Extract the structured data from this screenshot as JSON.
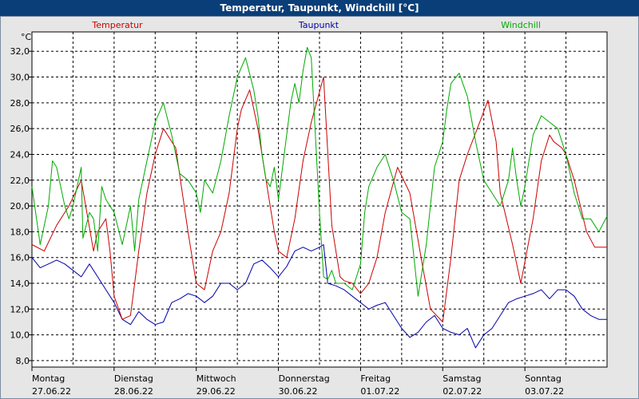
{
  "window": {
    "title": "Temperatur, Taupunkt, Windchill [°C]"
  },
  "colors": {
    "temperatur": "#cc0000",
    "taupunkt": "#0000aa",
    "windchill": "#00aa00",
    "plot_bg": "#ffffff",
    "grid": "#000000"
  },
  "chart_data": {
    "type": "line",
    "title": "Temperatur, Taupunkt, Windchill [°C]",
    "ylabel": "°C",
    "ylim": [
      7.5,
      33.5
    ],
    "xlim": [
      0,
      7
    ],
    "y_ticks": [
      "8,0",
      "10,0",
      "12,0",
      "14,0",
      "16,0",
      "18,0",
      "20,0",
      "22,0",
      "24,0",
      "26,0",
      "28,0",
      "30,0",
      "32,0"
    ],
    "y_tick_values": [
      8,
      10,
      12,
      14,
      16,
      18,
      20,
      22,
      24,
      26,
      28,
      30,
      32
    ],
    "x_ticks": [
      {
        "day": "Montag",
        "date": "27.06.22"
      },
      {
        "day": "Dienstag",
        "date": "28.06.22"
      },
      {
        "day": "Mittwoch",
        "date": "29.06.22"
      },
      {
        "day": "Donnerstag",
        "date": "30.06.22"
      },
      {
        "day": "Freitag",
        "date": "01.07.22"
      },
      {
        "day": "Samstag",
        "date": "02.07.22"
      },
      {
        "day": "Sonntag",
        "date": "03.07.22"
      }
    ],
    "x_tick_values": [
      0,
      1,
      2,
      3,
      4,
      5,
      6
    ],
    "grid": true,
    "series": [
      {
        "name": "Temperatur",
        "color": "#cc0000",
        "x": [
          0,
          0.15,
          0.3,
          0.45,
          0.6,
          0.75,
          0.8,
          0.9,
          0.95,
          1.0,
          1.1,
          1.2,
          1.25,
          1.3,
          1.4,
          1.5,
          1.6,
          1.75,
          1.9,
          2.0,
          2.1,
          2.2,
          2.3,
          2.4,
          2.5,
          2.55,
          2.65,
          2.75,
          2.85,
          2.95,
          3.0,
          3.1,
          3.2,
          3.3,
          3.4,
          3.55,
          3.65,
          3.75,
          3.8,
          3.9,
          4.0,
          4.1,
          4.2,
          4.3,
          4.45,
          4.6,
          4.75,
          4.85,
          5.0,
          5.1,
          5.2,
          5.3,
          5.45,
          5.55,
          5.65,
          5.7,
          5.85,
          5.95,
          6.1,
          6.2,
          6.3,
          6.35,
          6.45,
          6.5,
          6.6,
          6.75,
          6.85,
          7.0
        ],
        "values": [
          17.0,
          16.5,
          18.5,
          20.0,
          22.0,
          16.5,
          18.0,
          19.0,
          16.5,
          13.0,
          11.2,
          11.5,
          14.0,
          16.5,
          21.0,
          24.0,
          26.0,
          24.5,
          18.0,
          14.0,
          13.5,
          16.5,
          18.0,
          21.0,
          26.0,
          27.5,
          29.0,
          26.0,
          22.0,
          18.0,
          16.5,
          16.0,
          19.0,
          23.5,
          26.5,
          30.0,
          18.5,
          14.5,
          14.2,
          14.0,
          13.2,
          14.0,
          16.0,
          19.5,
          23.0,
          21.0,
          15.5,
          12.0,
          11.0,
          16.0,
          22.0,
          24.0,
          26.5,
          28.2,
          25.0,
          21.0,
          17.0,
          14.0,
          19.0,
          23.5,
          25.5,
          25.0,
          24.5,
          24.0,
          22.0,
          18.0,
          16.8,
          16.8
        ]
      },
      {
        "name": "Taupunkt",
        "color": "#0000aa",
        "x": [
          0,
          0.1,
          0.2,
          0.3,
          0.4,
          0.5,
          0.6,
          0.7,
          0.8,
          0.9,
          1.0,
          1.1,
          1.2,
          1.25,
          1.3,
          1.4,
          1.5,
          1.6,
          1.7,
          1.8,
          1.9,
          2.0,
          2.1,
          2.2,
          2.3,
          2.4,
          2.5,
          2.6,
          2.7,
          2.8,
          2.9,
          3.0,
          3.1,
          3.2,
          3.3,
          3.4,
          3.5,
          3.55,
          3.6,
          3.7,
          3.8,
          3.9,
          4.0,
          4.1,
          4.2,
          4.3,
          4.4,
          4.5,
          4.6,
          4.7,
          4.8,
          4.9,
          5.0,
          5.1,
          5.2,
          5.3,
          5.4,
          5.5,
          5.6,
          5.7,
          5.8,
          5.9,
          6.0,
          6.1,
          6.2,
          6.3,
          6.4,
          6.5,
          6.6,
          6.7,
          6.8,
          6.9,
          7.0
        ],
        "values": [
          16.0,
          15.2,
          15.5,
          15.8,
          15.5,
          15.0,
          14.5,
          15.5,
          14.5,
          13.5,
          12.5,
          11.2,
          10.8,
          11.3,
          11.8,
          11.2,
          10.8,
          11.0,
          12.5,
          12.8,
          13.2,
          13.0,
          12.5,
          13.0,
          14.0,
          14.0,
          13.5,
          14.0,
          15.5,
          15.8,
          15.2,
          14.5,
          15.3,
          16.5,
          16.8,
          16.5,
          16.8,
          17.0,
          14.0,
          13.8,
          13.5,
          13.0,
          12.5,
          12.0,
          12.3,
          12.5,
          11.5,
          10.5,
          9.8,
          10.2,
          11.0,
          11.5,
          10.5,
          10.2,
          10.0,
          10.5,
          9.0,
          10.0,
          10.5,
          11.5,
          12.5,
          12.8,
          13.0,
          13.2,
          13.5,
          12.8,
          13.5,
          13.5,
          13.0,
          12.0,
          11.5,
          11.2,
          11.2
        ]
      },
      {
        "name": "Windchill",
        "color": "#00aa00",
        "x": [
          0,
          0.1,
          0.2,
          0.25,
          0.3,
          0.4,
          0.45,
          0.5,
          0.6,
          0.62,
          0.7,
          0.75,
          0.8,
          0.85,
          0.9,
          0.95,
          1.0,
          1.1,
          1.2,
          1.25,
          1.3,
          1.4,
          1.5,
          1.6,
          1.7,
          1.75,
          1.8,
          1.9,
          2.0,
          2.05,
          2.1,
          2.2,
          2.3,
          2.4,
          2.5,
          2.6,
          2.7,
          2.75,
          2.8,
          2.85,
          2.9,
          2.95,
          3.0,
          3.1,
          3.15,
          3.2,
          3.25,
          3.3,
          3.35,
          3.4,
          3.5,
          3.55,
          3.6,
          3.65,
          3.7,
          3.8,
          3.9,
          4.0,
          4.05,
          4.1,
          4.2,
          4.3,
          4.4,
          4.5,
          4.6,
          4.7,
          4.8,
          4.9,
          5.0,
          5.05,
          5.1,
          5.2,
          5.3,
          5.4,
          5.5,
          5.6,
          5.7,
          5.8,
          5.85,
          5.9,
          5.95,
          6.0,
          6.1,
          6.2,
          6.3,
          6.4,
          6.5,
          6.6,
          6.7,
          6.8,
          6.9,
          7.0
        ],
        "values": [
          21.5,
          17.0,
          20.0,
          23.5,
          23.0,
          20.0,
          19.0,
          20.0,
          23.0,
          17.5,
          19.5,
          19.0,
          16.5,
          21.5,
          20.5,
          20.0,
          19.5,
          17.0,
          20.0,
          16.5,
          20.5,
          23.5,
          26.5,
          28.0,
          25.5,
          24.0,
          22.5,
          22.0,
          21.0,
          19.5,
          22.0,
          21.0,
          23.5,
          27.0,
          30.0,
          31.5,
          29.0,
          27.0,
          24.0,
          22.0,
          21.5,
          23.0,
          20.5,
          25.5,
          28.0,
          29.5,
          28.0,
          30.5,
          32.3,
          31.5,
          19.5,
          14.5,
          14.3,
          15.0,
          14.0,
          14.0,
          13.5,
          15.5,
          19.5,
          21.5,
          23.0,
          24.0,
          22.0,
          19.5,
          19.0,
          13.0,
          17.0,
          23.0,
          25.0,
          27.5,
          29.5,
          30.3,
          28.5,
          25.0,
          22.0,
          21.0,
          20.0,
          22.0,
          24.5,
          22.0,
          20.0,
          21.5,
          25.5,
          27.0,
          26.5,
          26.0,
          24.0,
          21.0,
          19.0,
          19.0,
          18.0,
          19.2
        ]
      }
    ]
  }
}
